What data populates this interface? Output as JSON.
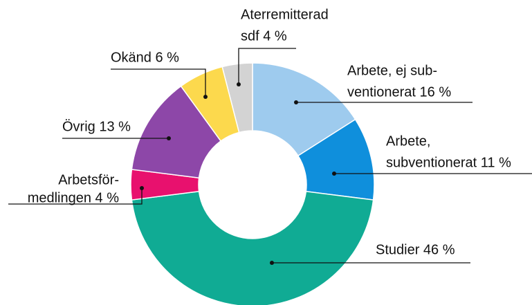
{
  "chart_data": {
    "type": "donut",
    "values": [
      16,
      11,
      46,
      4,
      13,
      6,
      4
    ],
    "value_labels": [
      [
        "Arbete, ej sub-",
        "ventionerat 16 %"
      ],
      [
        "Arbete,",
        "subventionerat 11 %"
      ],
      [
        "Studier 46 %"
      ],
      [
        "Arbetsför-",
        "medlingen 4 %"
      ],
      [
        "Övrig 13 %"
      ],
      [
        "Okänd 6 %"
      ],
      [
        "Aterremitterad",
        "sdf 4 %"
      ]
    ],
    "colors": [
      "#9ecbee",
      "#0f8fdc",
      "#10ab94",
      "#e8116e",
      "#8d47a8",
      "#fcd94d",
      "#d3d3d3"
    ]
  }
}
